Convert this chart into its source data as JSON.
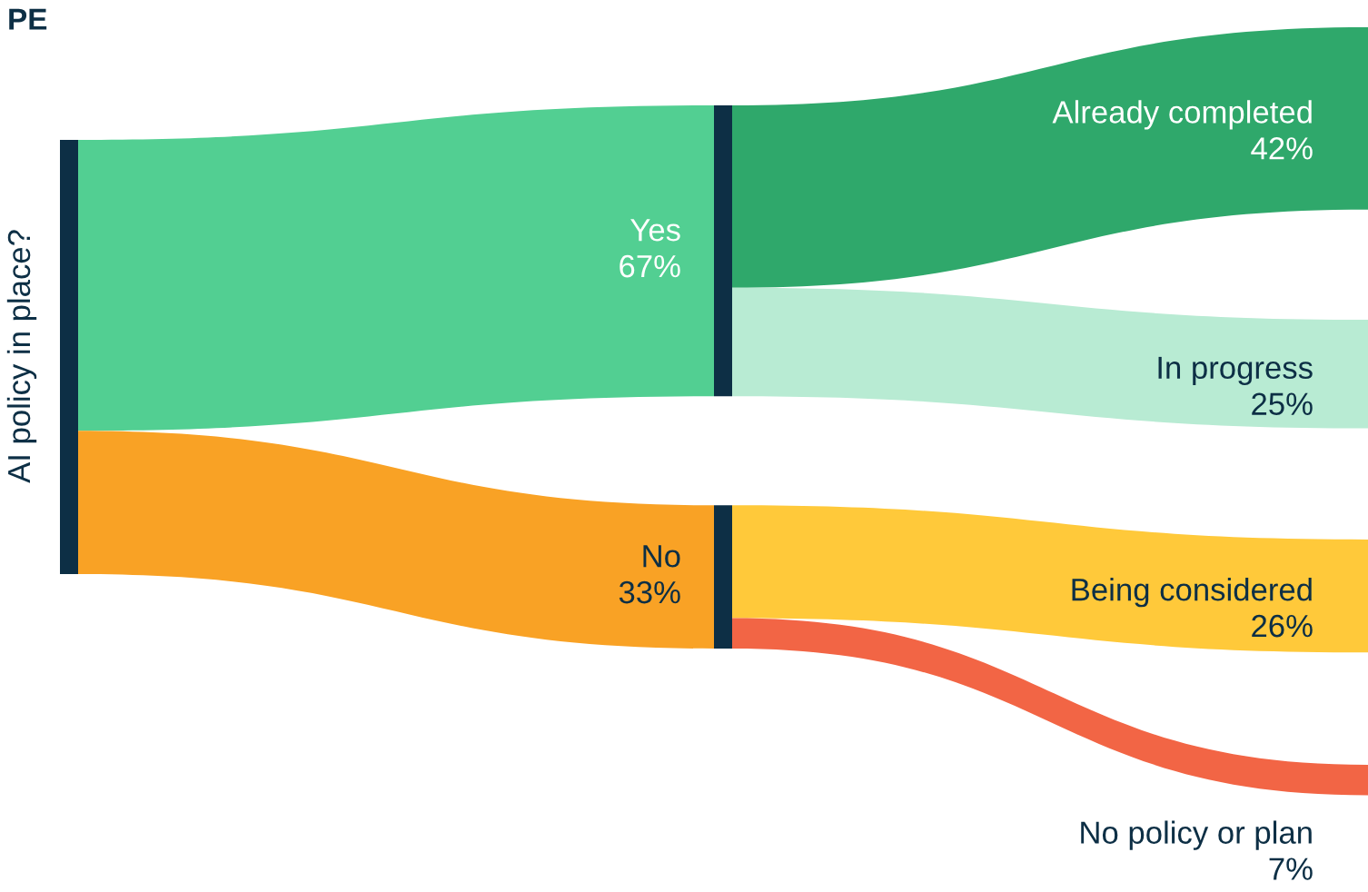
{
  "chart_data": {
    "type": "other",
    "title": "PE",
    "ylabel": "AI policy in place?",
    "categories": [
      "Yes",
      "No",
      "Already completed",
      "In progress",
      "Being considered",
      "No policy or plan"
    ],
    "values": [
      67,
      33,
      42,
      25,
      26,
      7
    ],
    "value_labels": [
      "67%",
      "33%",
      "42%",
      "25%",
      "26%",
      "7%"
    ],
    "colors": [
      "#52cf92",
      "#f9a225",
      "#2fa86b",
      "#b8ebd3",
      "#ffc93a",
      "#f26545"
    ]
  }
}
